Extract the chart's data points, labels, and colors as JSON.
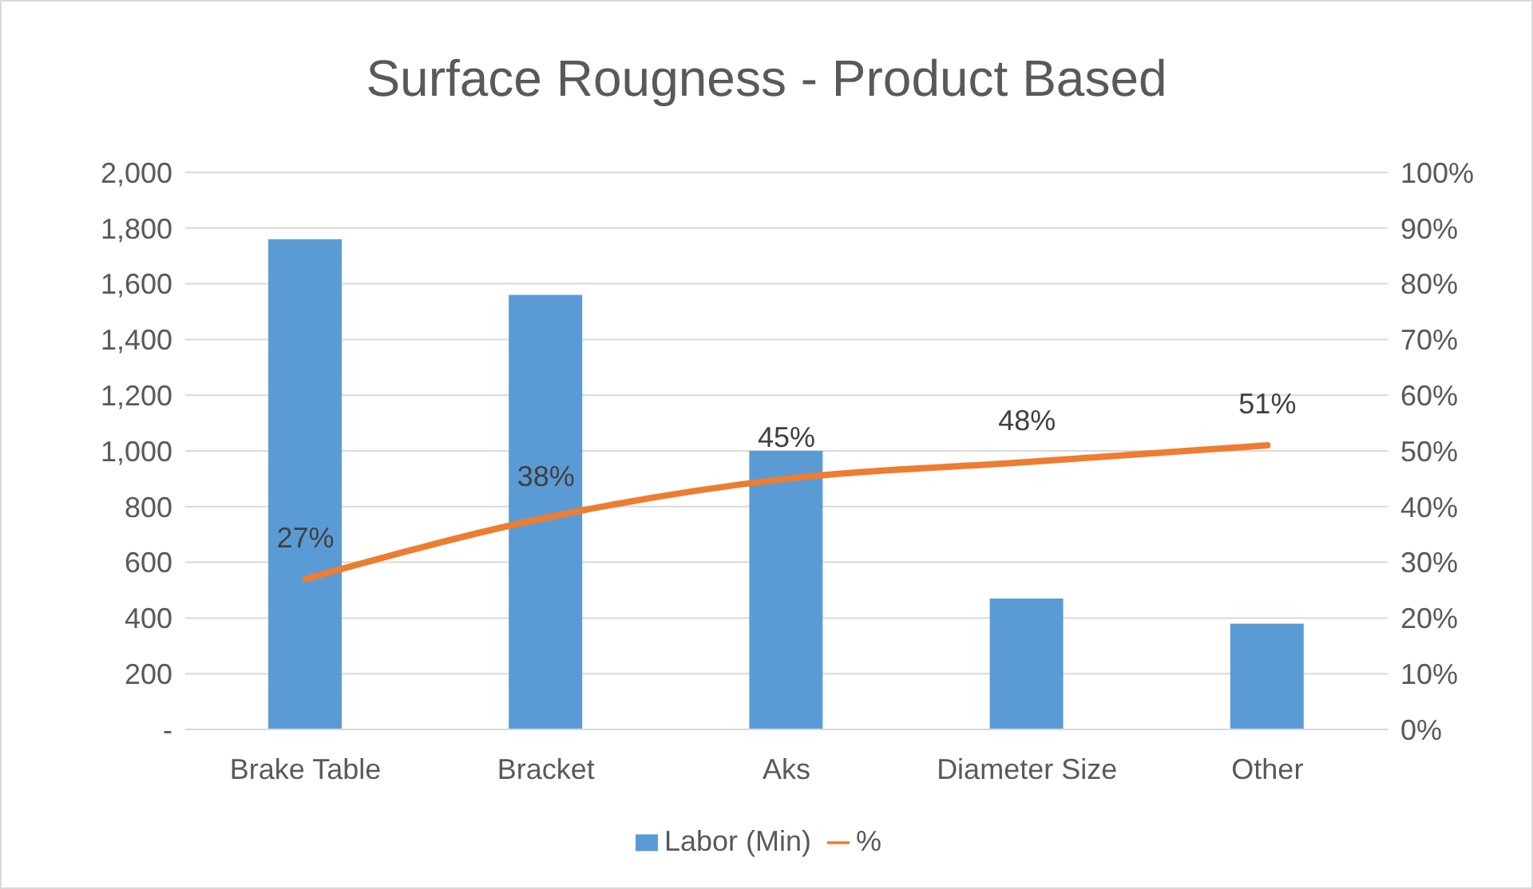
{
  "chart_data": {
    "type": "bar",
    "title": "Surface Rougness - Product Based",
    "categories": [
      "Brake Table",
      "Bracket",
      "Aks",
      "Diameter Size",
      "Other"
    ],
    "series": [
      {
        "name": "Labor (Min)",
        "color": "#5b9bd5",
        "values": [
          1760,
          1560,
          1000,
          470,
          380
        ]
      },
      {
        "name": "%",
        "type": "line",
        "axis": "y2",
        "color": "#ed7d31",
        "values": [
          27,
          38,
          45,
          48,
          51
        ],
        "value_labels": [
          "27%",
          "38%",
          "45%",
          "48%",
          "51%"
        ]
      }
    ],
    "ylim": [
      0,
      2000
    ],
    "yticks": [
      {
        "value": 0,
        "label": "-"
      },
      {
        "value": 200,
        "label": "200"
      },
      {
        "value": 400,
        "label": "400"
      },
      {
        "value": 600,
        "label": "600"
      },
      {
        "value": 800,
        "label": "800"
      },
      {
        "value": 1000,
        "label": "1,000"
      },
      {
        "value": 1200,
        "label": "1,200"
      },
      {
        "value": 1400,
        "label": "1,400"
      },
      {
        "value": 1600,
        "label": "1,600"
      },
      {
        "value": 1800,
        "label": "1,800"
      },
      {
        "value": 2000,
        "label": "2,000"
      }
    ],
    "y2lim": [
      0,
      100
    ],
    "y2ticks": [
      {
        "value": 0,
        "label": "0%"
      },
      {
        "value": 10,
        "label": "10%"
      },
      {
        "value": 20,
        "label": "20%"
      },
      {
        "value": 30,
        "label": "30%"
      },
      {
        "value": 40,
        "label": "40%"
      },
      {
        "value": 50,
        "label": "50%"
      },
      {
        "value": 60,
        "label": "60%"
      },
      {
        "value": 70,
        "label": "70%"
      },
      {
        "value": 80,
        "label": "80%"
      },
      {
        "value": 90,
        "label": "90%"
      },
      {
        "value": 100,
        "label": "100%"
      }
    ],
    "grid": "y",
    "legend": "bottom",
    "marker": "none",
    "line_style": "solid"
  }
}
